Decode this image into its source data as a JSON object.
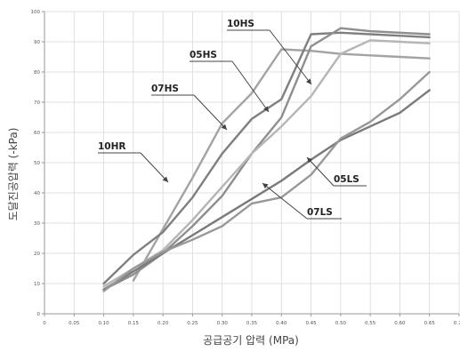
{
  "chart_data": {
    "type": "line",
    "xlabel": "공급공기 압력 (MPa)",
    "ylabel": "도달진공압력 (-kPa)",
    "xlim": [
      0,
      0.7
    ],
    "ylim": [
      0,
      100
    ],
    "x_ticks": [
      "0",
      "0.05",
      "0.10",
      "0.15",
      "0.20",
      "0.25",
      "0.30",
      "0.35",
      "0.40",
      "0.45",
      "0.50",
      "0.55",
      "0.60",
      "0.65",
      "0.70"
    ],
    "y_ticks": [
      "0",
      "10",
      "20",
      "30",
      "40",
      "50",
      "60",
      "70",
      "80",
      "90",
      "100"
    ],
    "grid": true,
    "series": [
      {
        "name": "10HR",
        "color": "#a3a3a3",
        "x": [
          0.15,
          0.2,
          0.25,
          0.3,
          0.35,
          0.4,
          0.45,
          0.5,
          0.55,
          0.6,
          0.65
        ],
        "y": [
          11,
          28,
          45,
          63,
          73,
          87.5,
          87,
          86,
          85.5,
          85,
          84.5
        ]
      },
      {
        "name": "07HS",
        "color": "#7f7f7f",
        "x": [
          0.1,
          0.15,
          0.2,
          0.25,
          0.3,
          0.35,
          0.4,
          0.45,
          0.5,
          0.55,
          0.6,
          0.65
        ],
        "y": [
          10,
          19.5,
          27,
          38.5,
          53,
          64.5,
          71,
          92.5,
          93,
          92.5,
          92,
          91.5
        ]
      },
      {
        "name": "05HS",
        "color": "#8e8e8e",
        "x": [
          0.1,
          0.15,
          0.2,
          0.25,
          0.3,
          0.35,
          0.4,
          0.45,
          0.5,
          0.55,
          0.6,
          0.65
        ],
        "y": [
          8,
          13,
          20,
          29,
          39,
          53,
          65,
          88.5,
          94.5,
          93.5,
          93,
          92.5
        ]
      },
      {
        "name": "10HS",
        "color": "#b5b5b5",
        "x": [
          0.1,
          0.15,
          0.2,
          0.25,
          0.3,
          0.35,
          0.4,
          0.45,
          0.5,
          0.55,
          0.6,
          0.65
        ],
        "y": [
          9,
          15,
          21,
          31,
          42,
          53,
          62,
          72,
          86,
          90.5,
          90,
          89.5
        ]
      },
      {
        "name": "07LS",
        "color": "#7a7a7a",
        "x": [
          0.1,
          0.15,
          0.2,
          0.25,
          0.3,
          0.35,
          0.4,
          0.45,
          0.5,
          0.55,
          0.6,
          0.65
        ],
        "y": [
          8,
          14,
          20,
          26,
          32,
          38,
          44,
          51,
          57.5,
          62,
          66.5,
          74
        ]
      },
      {
        "name": "05LS",
        "color": "#989898",
        "x": [
          0.1,
          0.15,
          0.2,
          0.25,
          0.3,
          0.35,
          0.4,
          0.45,
          0.5,
          0.55,
          0.6,
          0.65
        ],
        "y": [
          7.5,
          15,
          20.5,
          24.5,
          29,
          36.5,
          38.5,
          46,
          58,
          63.5,
          71,
          80
        ]
      }
    ],
    "annotations": [
      {
        "label": "10HR"
      },
      {
        "label": "07HS"
      },
      {
        "label": "05HS"
      },
      {
        "label": "10HS"
      },
      {
        "label": "07LS"
      },
      {
        "label": "05LS"
      }
    ]
  }
}
